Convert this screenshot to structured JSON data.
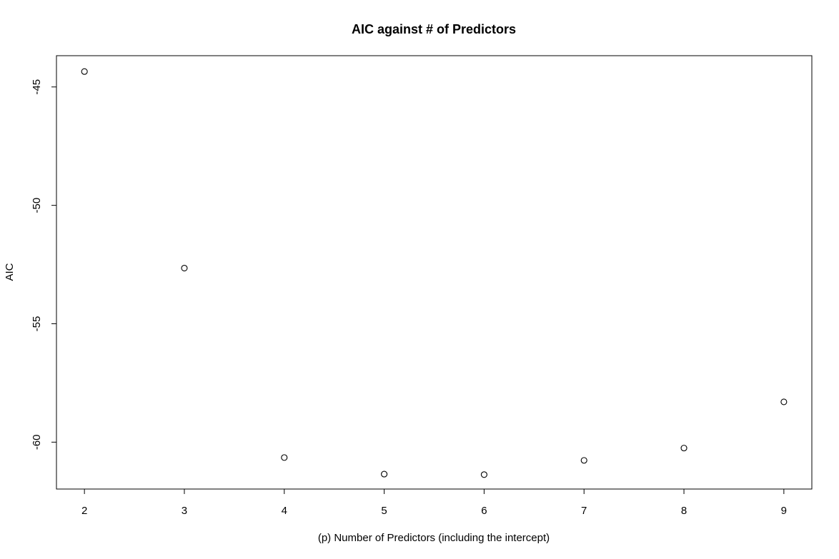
{
  "chart_data": {
    "type": "scatter",
    "title": "AIC against # of Predictors",
    "xlabel": "(p) Number of Predictors (including the intercept)",
    "ylabel": "AIC",
    "x": [
      2,
      3,
      4,
      5,
      6,
      7,
      8,
      9
    ],
    "y": [
      -44.35,
      -52.65,
      -60.65,
      -61.35,
      -61.37,
      -60.77,
      -60.25,
      -58.3
    ],
    "xticks": [
      2,
      3,
      4,
      5,
      6,
      7,
      8,
      9
    ],
    "yticks": [
      -45,
      -50,
      -55,
      -60
    ],
    "xlim": [
      1.72,
      9.28
    ],
    "ylim": [
      -61.98,
      -43.68
    ],
    "grid": false,
    "legend": "none",
    "marker": "open-circle",
    "colors": {
      "marker": "#000000",
      "background": "#ffffff"
    }
  }
}
